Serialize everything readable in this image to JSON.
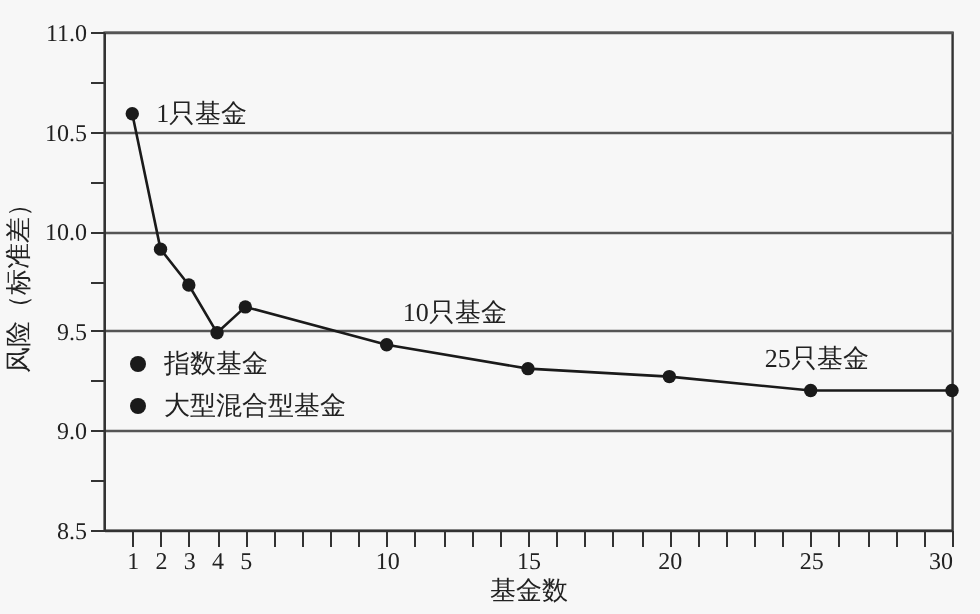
{
  "chart_data": {
    "type": "line",
    "xlabel": "基金数",
    "ylabel": "风险（标准差）",
    "x": [
      1,
      2,
      3,
      4,
      5,
      10,
      15,
      20,
      25,
      30
    ],
    "series": [
      {
        "color": "#1a1a1a",
        "values": [
          10.59,
          9.91,
          9.73,
          9.49,
          9.62,
          9.43,
          9.31,
          9.27,
          9.2,
          9.2
        ]
      }
    ],
    "xlim": [
      0,
      30
    ],
    "xticks": [
      1,
      2,
      3,
      4,
      5,
      {
        "value": 6,
        "label": null
      },
      {
        "value": 7,
        "label": null
      },
      {
        "value": 8,
        "label": null
      },
      {
        "value": 9,
        "label": null
      },
      10,
      {
        "value": 11,
        "label": null
      },
      {
        "value": 12,
        "label": null
      },
      {
        "value": 13,
        "label": null
      },
      {
        "value": 14,
        "label": null
      },
      15,
      {
        "value": 16,
        "label": null
      },
      {
        "value": 17,
        "label": null
      },
      {
        "value": 18,
        "label": null
      },
      {
        "value": 19,
        "label": null
      },
      20,
      {
        "value": 21,
        "label": null
      },
      {
        "value": 22,
        "label": null
      },
      {
        "value": 23,
        "label": null
      },
      {
        "value": 24,
        "label": null
      },
      25,
      {
        "value": 26,
        "label": null
      },
      {
        "value": 27,
        "label": null
      },
      {
        "value": 28,
        "label": null
      },
      {
        "value": 29,
        "label": null
      },
      30
    ],
    "ylim": [
      8.5,
      11
    ],
    "yticks": [
      8.5,
      {
        "value": 8.75,
        "label": null
      },
      {
        "value": 9,
        "label": "9.0"
      },
      {
        "value": 9.25,
        "label": null
      },
      9.5,
      {
        "value": 9.75,
        "label": null
      },
      {
        "value": 10,
        "label": "10.0"
      },
      {
        "value": 10.25,
        "label": null
      },
      10.5,
      {
        "value": 10.75,
        "label": null
      },
      {
        "value": 11,
        "label": "11.0"
      }
    ],
    "annotations": [
      {
        "text": "1只基金",
        "x": 1,
        "y": 10.59
      },
      {
        "text": "10只基金",
        "x": 10,
        "y": 9.43
      },
      {
        "text": "25只基金",
        "x": 25,
        "y": 9.2
      },
      "指数基金",
      "大型混合型基金"
    ],
    "grid": "y",
    "marker": "circle",
    "line_style": "solid"
  }
}
